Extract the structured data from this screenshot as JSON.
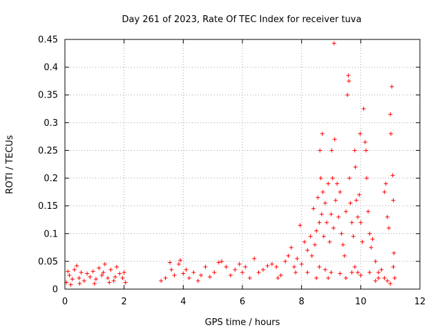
{
  "chart_data": {
    "type": "scatter",
    "title": "Day 261 of 2023, Rate Of TEC Index for receiver tuva",
    "xlabel": "GPS time / hours",
    "ylabel": "ROTI / TECUs",
    "xlim": [
      0,
      12
    ],
    "ylim": [
      0,
      0.45
    ],
    "x_ticks": [
      0,
      2,
      4,
      6,
      8,
      10,
      12
    ],
    "y_ticks": [
      0,
      0.05,
      0.1,
      0.15,
      0.2,
      0.25,
      0.3,
      0.35,
      0.4,
      0.45
    ],
    "x_tick_labels": [
      "0",
      "2",
      "4",
      "6",
      "8",
      "10",
      "12"
    ],
    "y_tick_labels": [
      "0",
      "0.05",
      "0.1",
      "0.15",
      "0.2",
      "0.25",
      "0.3",
      "0.35",
      "0.4",
      "0.45"
    ],
    "grid": true,
    "marker": "plus",
    "color": "#ff0000",
    "points": [
      [
        0.05,
        0.012
      ],
      [
        0.15,
        0.025
      ],
      [
        0.25,
        0.018
      ],
      [
        0.32,
        0.035
      ],
      [
        0.4,
        0.042
      ],
      [
        0.48,
        0.02
      ],
      [
        0.55,
        0.03
      ],
      [
        0.65,
        0.015
      ],
      [
        0.75,
        0.028
      ],
      [
        0.85,
        0.022
      ],
      [
        0.95,
        0.032
      ],
      [
        1.05,
        0.018
      ],
      [
        1.15,
        0.038
      ],
      [
        1.25,
        0.025
      ],
      [
        1.35,
        0.045
      ],
      [
        1.45,
        0.02
      ],
      [
        1.55,
        0.035
      ],
      [
        1.65,
        0.015
      ],
      [
        1.75,
        0.04
      ],
      [
        1.85,
        0.028
      ],
      [
        1.95,
        0.02
      ],
      [
        2.05,
        0.012
      ],
      [
        0.1,
        0.032
      ],
      [
        0.5,
        0.01
      ],
      [
        1.0,
        0.01
      ],
      [
        1.5,
        0.012
      ],
      [
        2.0,
        0.03
      ],
      [
        0.2,
        0.008
      ],
      [
        1.3,
        0.03
      ],
      [
        1.7,
        0.022
      ],
      [
        3.25,
        0.015
      ],
      [
        3.4,
        0.02
      ],
      [
        3.55,
        0.048
      ],
      [
        3.6,
        0.035
      ],
      [
        3.7,
        0.025
      ],
      [
        3.85,
        0.045
      ],
      [
        3.9,
        0.052
      ],
      [
        4.0,
        0.028
      ],
      [
        4.1,
        0.035
      ],
      [
        4.2,
        0.02
      ],
      [
        4.35,
        0.03
      ],
      [
        4.5,
        0.015
      ],
      [
        4.6,
        0.025
      ],
      [
        4.75,
        0.04
      ],
      [
        4.9,
        0.022
      ],
      [
        5.05,
        0.03
      ],
      [
        5.2,
        0.048
      ],
      [
        5.3,
        0.05
      ],
      [
        5.45,
        0.04
      ],
      [
        5.6,
        0.025
      ],
      [
        5.75,
        0.035
      ],
      [
        5.9,
        0.045
      ],
      [
        6.0,
        0.03
      ],
      [
        6.1,
        0.04
      ],
      [
        6.25,
        0.02
      ],
      [
        6.4,
        0.055
      ],
      [
        6.55,
        0.03
      ],
      [
        6.7,
        0.035
      ],
      [
        6.85,
        0.042
      ],
      [
        7.0,
        0.045
      ],
      [
        7.15,
        0.04
      ],
      [
        7.3,
        0.025
      ],
      [
        7.45,
        0.05
      ],
      [
        7.55,
        0.06
      ],
      [
        7.65,
        0.075
      ],
      [
        7.75,
        0.04
      ],
      [
        7.85,
        0.055
      ],
      [
        7.95,
        0.115
      ],
      [
        8.0,
        0.045
      ],
      [
        8.1,
        0.085
      ],
      [
        8.2,
        0.07
      ],
      [
        8.3,
        0.095
      ],
      [
        8.35,
        0.06
      ],
      [
        8.4,
        0.145
      ],
      [
        8.45,
        0.08
      ],
      [
        8.5,
        0.105
      ],
      [
        8.55,
        0.165
      ],
      [
        8.6,
        0.12
      ],
      [
        8.62,
        0.25
      ],
      [
        8.65,
        0.2
      ],
      [
        8.68,
        0.135
      ],
      [
        8.7,
        0.28
      ],
      [
        8.72,
        0.175
      ],
      [
        8.75,
        0.095
      ],
      [
        8.8,
        0.155
      ],
      [
        8.85,
        0.12
      ],
      [
        8.9,
        0.19
      ],
      [
        8.95,
        0.085
      ],
      [
        9.0,
        0.135
      ],
      [
        9.02,
        0.25
      ],
      [
        9.05,
        0.2
      ],
      [
        9.08,
        0.11
      ],
      [
        9.1,
        0.443
      ],
      [
        9.12,
        0.27
      ],
      [
        9.15,
        0.16
      ],
      [
        9.2,
        0.19
      ],
      [
        9.25,
        0.13
      ],
      [
        9.3,
        0.175
      ],
      [
        9.35,
        0.1
      ],
      [
        9.4,
        0.08
      ],
      [
        9.45,
        0.06
      ],
      [
        9.5,
        0.14
      ],
      [
        9.55,
        0.35
      ],
      [
        9.58,
        0.385
      ],
      [
        9.6,
        0.375
      ],
      [
        9.62,
        0.2
      ],
      [
        9.65,
        0.155
      ],
      [
        9.7,
        0.12
      ],
      [
        9.75,
        0.095
      ],
      [
        9.8,
        0.25
      ],
      [
        9.82,
        0.22
      ],
      [
        9.85,
        0.16
      ],
      [
        9.9,
        0.13
      ],
      [
        9.95,
        0.17
      ],
      [
        9.98,
        0.28
      ],
      [
        10.0,
        0.12
      ],
      [
        10.05,
        0.085
      ],
      [
        10.1,
        0.325
      ],
      [
        10.15,
        0.265
      ],
      [
        10.18,
        0.25
      ],
      [
        10.2,
        0.2
      ],
      [
        10.25,
        0.14
      ],
      [
        10.3,
        0.1
      ],
      [
        10.35,
        0.075
      ],
      [
        10.4,
        0.09
      ],
      [
        10.5,
        0.05
      ],
      [
        10.6,
        0.03
      ],
      [
        10.7,
        0.035
      ],
      [
        10.8,
        0.175
      ],
      [
        10.85,
        0.19
      ],
      [
        10.9,
        0.13
      ],
      [
        10.95,
        0.11
      ],
      [
        11.0,
        0.315
      ],
      [
        11.02,
        0.28
      ],
      [
        11.05,
        0.365
      ],
      [
        11.08,
        0.205
      ],
      [
        11.1,
        0.16
      ],
      [
        11.12,
        0.065
      ],
      [
        11.15,
        0.02
      ],
      [
        11.1,
        0.04
      ],
      [
        8.5,
        0.02
      ],
      [
        9.0,
        0.03
      ],
      [
        9.5,
        0.02
      ],
      [
        10.0,
        0.025
      ],
      [
        10.5,
        0.015
      ],
      [
        11.0,
        0.01
      ],
      [
        8.2,
        0.03
      ],
      [
        8.8,
        0.035
      ],
      [
        9.3,
        0.028
      ],
      [
        9.8,
        0.04
      ],
      [
        10.3,
        0.03
      ],
      [
        10.8,
        0.02
      ],
      [
        7.2,
        0.02
      ],
      [
        7.8,
        0.03
      ],
      [
        8.6,
        0.04
      ],
      [
        9.7,
        0.03
      ],
      [
        10.6,
        0.02
      ],
      [
        8.9,
        0.02
      ],
      [
        9.9,
        0.03
      ],
      [
        10.9,
        0.015
      ]
    ]
  }
}
